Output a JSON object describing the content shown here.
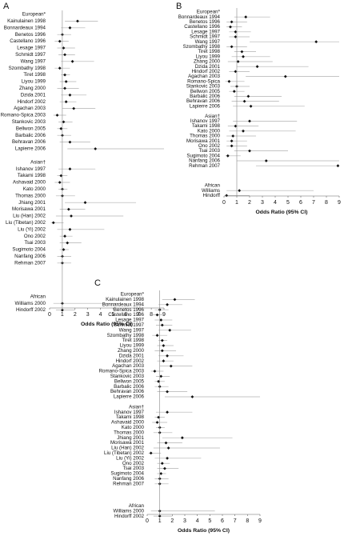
{
  "chart_data": [
    {
      "type": "forest",
      "panel": "A",
      "xlabel": "Odds Ratio (95% CI)",
      "xlim": [
        0,
        9
      ],
      "xticks": [
        0,
        1,
        2,
        3,
        4,
        5,
        6,
        7,
        8,
        9
      ],
      "reference": 1,
      "groups": [
        {
          "name": "European*",
          "studies": [
            "Kainulainen 1998",
            "Bonnardeaux 1994",
            "Benetos 1996",
            "Castellano 1996",
            "Lesage 1997",
            "Schmidt 1997",
            "Wang 1997",
            "Szombathy 1998",
            "Tiret 1998",
            "Liyou 1999",
            "Zhang 2000",
            "Dzida 2001",
            "Hindorf 2002",
            "Agachan 2003",
            "Romano-Spica 2003",
            "Stankovic 2003",
            "Bellwon 2005",
            "Barbalic 2006",
            "Behravan 2006",
            "Lapierre 2006"
          ],
          "values": [
            2.2,
            1.6,
            1.0,
            0.8,
            1.1,
            1.2,
            1.8,
            0.8,
            1.2,
            1.3,
            1.2,
            1.6,
            1.3,
            1.9,
            0.6,
            1.1,
            0.9,
            1.0,
            1.6,
            3.6
          ],
          "lower": [
            1.2,
            0.9,
            0.6,
            0.4,
            0.6,
            0.7,
            0.9,
            0.4,
            0.9,
            0.8,
            0.6,
            0.9,
            0.8,
            1.0,
            0.3,
            0.7,
            0.6,
            0.6,
            0.8,
            1.4
          ],
          "upper": [
            3.8,
            2.8,
            1.7,
            1.5,
            2.0,
            2.0,
            3.5,
            1.6,
            1.6,
            2.1,
            2.3,
            2.9,
            2.1,
            3.6,
            1.3,
            1.8,
            1.4,
            1.7,
            3.2,
            9
          ]
        },
        {
          "name": "Asian†",
          "studies": [
            "Ishanov 1997",
            "Takami 1998",
            "Ashavaid 2000",
            "Kato 2000",
            "Thomas 2000",
            "Jhiang 2001",
            "Morisawa 2001",
            "Liu (Han) 2002",
            "Liu (Tibetan) 2002",
            "Liu (Yi) 2002",
            "Ono 2002",
            "Tsai 2003",
            "Sugimoto 2004",
            "Nanfang 2006",
            "Rehman 2007"
          ],
          "values": [
            1.6,
            0.9,
            0.8,
            1.0,
            1.0,
            2.8,
            1.5,
            1.7,
            0.3,
            1.6,
            1.2,
            1.4,
            1.1,
            1.0,
            1.0
          ],
          "lower": [
            0.7,
            0.6,
            0.4,
            0.7,
            0.5,
            1.2,
            0.8,
            0.5,
            0.1,
            0.6,
            0.8,
            0.8,
            0.8,
            0.6,
            0.6
          ],
          "upper": [
            3.6,
            1.4,
            1.6,
            1.4,
            2.0,
            6.8,
            2.8,
            5.8,
            1.1,
            4.3,
            1.8,
            2.5,
            1.5,
            1.7,
            1.7
          ]
        },
        {
          "name": "African",
          "studies": [
            "Williams 2000",
            "Hindorff 2002"
          ],
          "values": [
            1.0,
            1.0
          ],
          "lower": [
            0.3,
            0.5
          ],
          "upper": [
            5.4,
            2.0
          ]
        }
      ]
    },
    {
      "type": "forest",
      "panel": "B",
      "xlabel": "Odds Ratio (95% CI)",
      "xlim": [
        0,
        9
      ],
      "xticks": [
        0,
        1,
        2,
        3,
        4,
        5,
        6,
        7,
        8,
        9
      ],
      "reference": 1,
      "groups": [
        {
          "name": "European*",
          "studies": [
            "Bonnardeaux 1994",
            "Benetos 1996",
            "Castellano 1996",
            "Lesage 1997",
            "Schmidt 1997",
            "Wang 1997",
            "Szombathy 1998",
            "Tiret 1998",
            "Liyou 1999",
            "Zhang 2000",
            "Dzida 2001",
            "Hindorf 2002",
            "Agachan 2003",
            "Romano-Spica",
            "Stankovic 2003",
            "Bellwon 2005",
            "Barbalic 2006",
            "Behravan 2006",
            "Lapierre 2006"
          ],
          "values": [
            1.7,
            0.6,
            0.5,
            0.9,
            0.9,
            7.2,
            0.6,
            1.4,
            1.5,
            1.1,
            2.6,
            0.9,
            4.8,
            0.4,
            1.0,
            0.8,
            1.9,
            1.6,
            2.1
          ],
          "lower": [
            0.8,
            0.2,
            0.2,
            0.4,
            0.4,
            2.0,
            0.2,
            0.8,
            0.6,
            0.3,
            1.0,
            0.4,
            1.7,
            0.1,
            0.5,
            0.4,
            0.8,
            0.6,
            0.7
          ],
          "upper": [
            3.6,
            1.8,
            1.4,
            2.1,
            2.0,
            9,
            1.8,
            2.5,
            3.6,
            3.8,
            6.6,
            2.0,
            9,
            1.6,
            2.0,
            1.6,
            4.5,
            4.3,
            6.3
          ]
        },
        {
          "name": "Asian†",
          "studies": [
            "Ishanov 1997",
            "Takami 1998",
            "Kato 2000",
            "Thomas 2000",
            "Morisawa 2001",
            "Ono 2002",
            "Tsai 2003",
            "Sugimoto 2004",
            "Nanfang 2006",
            "Rehman 2007"
          ],
          "values": [
            2.0,
            0.9,
            1.5,
            0.7,
            0.6,
            0.6,
            2.0,
            0.3,
            3.3,
            8.9
          ],
          "lower": [
            0.7,
            0.3,
            0.4,
            0.2,
            0.2,
            0.2,
            0.8,
            0.1,
            1.0,
            2.5
          ],
          "upper": [
            5.7,
            2.7,
            5.6,
            2.5,
            1.8,
            1.8,
            5.0,
            1.3,
            9,
            9
          ]
        },
        {
          "name": "African",
          "studies": [
            "Williams",
            "Hindorff"
          ],
          "values": [
            1.2,
            0.2
          ],
          "lower": [
            0.2,
            0.1
          ],
          "upper": [
            7.0,
            2.0
          ]
        }
      ]
    },
    {
      "type": "forest",
      "panel": "C",
      "xlabel": "Odds Ratio (95% CI)",
      "xlim": [
        0,
        9
      ],
      "xticks": [
        0,
        1,
        2,
        3,
        4,
        5,
        6,
        7,
        8,
        9
      ],
      "reference": 1,
      "groups": [
        {
          "name": "European*",
          "studies": [
            "Kainulainen 1998",
            "Bonnardeaux 1994",
            "Benetos 1996",
            "Castellano 1996",
            "Lesage 1997",
            "Schmidt 1997",
            "Wang 1997",
            "Szombathy 1998",
            "Tiret 1998",
            "Liyou 1999",
            "Zhang 2000",
            "Dzida 2001",
            "Hindorf 2002",
            "Agachan 2003",
            "Romano-Spica 2003",
            "Stankovic 2003",
            "Bellwon 2005",
            "Barbalic 2006",
            "Behravan 2006",
            "Lapierre 2006"
          ],
          "values": [
            2.2,
            1.6,
            1.0,
            0.8,
            1.1,
            1.2,
            1.8,
            0.8,
            1.2,
            1.3,
            1.2,
            1.6,
            1.3,
            1.9,
            0.6,
            1.1,
            0.9,
            1.0,
            1.6,
            3.6
          ],
          "lower": [
            1.2,
            0.9,
            0.6,
            0.4,
            0.6,
            0.7,
            0.9,
            0.4,
            0.9,
            0.8,
            0.6,
            0.9,
            0.8,
            1.0,
            0.3,
            0.7,
            0.6,
            0.6,
            0.8,
            1.4
          ],
          "upper": [
            3.8,
            2.8,
            1.7,
            1.5,
            2.0,
            2.0,
            3.5,
            1.6,
            1.6,
            2.1,
            2.3,
            2.9,
            2.1,
            3.6,
            1.3,
            1.8,
            1.4,
            1.7,
            3.2,
            9
          ]
        },
        {
          "name": "Asian†",
          "studies": [
            "Ishanov 1997",
            "Takami 1998",
            "Ashavaid 2000",
            "Kato 2000",
            "Thomas 2000",
            "Jhiang 2001",
            "Morisawa 2001",
            "Liu (Han) 2002",
            "Liu (Tibetan) 2002",
            "Liu (Yi) 2002",
            "Ono 2002",
            "Tsai 2003",
            "Sugimoto 2004",
            "Nanfang 2006",
            "Rehman 2007"
          ],
          "values": [
            1.6,
            0.9,
            0.8,
            1.0,
            1.0,
            2.8,
            1.5,
            1.7,
            0.3,
            1.6,
            1.2,
            1.4,
            1.1,
            1.0,
            1.0
          ],
          "lower": [
            0.7,
            0.6,
            0.4,
            0.7,
            0.5,
            1.2,
            0.8,
            0.5,
            0.1,
            0.6,
            0.8,
            0.8,
            0.8,
            0.6,
            0.6
          ],
          "upper": [
            3.6,
            1.4,
            1.6,
            1.4,
            2.0,
            6.8,
            2.8,
            5.8,
            1.1,
            4.3,
            1.8,
            2.5,
            1.5,
            1.7,
            1.7
          ]
        },
        {
          "name": "African",
          "studies": [
            "Williams 2000",
            "Hindorff 2002"
          ],
          "values": [
            1.0,
            1.0
          ],
          "lower": [
            0.3,
            0.5
          ],
          "upper": [
            5.4,
            2.0
          ]
        }
      ]
    }
  ]
}
